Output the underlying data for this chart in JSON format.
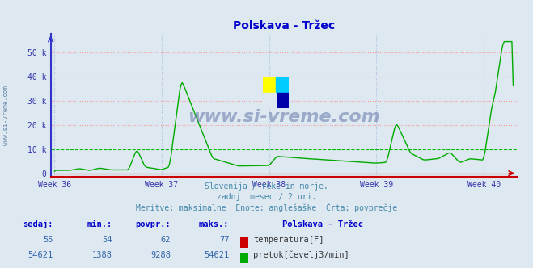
{
  "title": "Polskava - Tržec",
  "title_color": "#0000cc",
  "bg_color": "#dde8f0",
  "plot_bg_color": "#dde8f0",
  "grid_h_color": "#ff9999",
  "grid_h_style": "dotted",
  "grid_v_color": "#aabbdd",
  "grid_v_style": "dotted",
  "special_h_color": "#00bb00",
  "special_h_y": 10000,
  "special_h_style": "dashed",
  "left_axis_color": "#3333cc",
  "bottom_axis_color": "#cc0000",
  "x_label_color": "#3333aa",
  "y_label_color": "#3333aa",
  "week_labels": [
    "Week 36",
    "Week 37",
    "Week 38",
    "Week 39",
    "Week 40"
  ],
  "week_positions": [
    0,
    84,
    168,
    252,
    336
  ],
  "y_ticks": [
    0,
    10000,
    20000,
    30000,
    40000,
    50000
  ],
  "y_tick_labels": [
    "0",
    "10 k",
    "20 k",
    "30 k",
    "40 k",
    "50 k"
  ],
  "ylim": [
    -1500,
    58000
  ],
  "xlim": [
    -3,
    362
  ],
  "subtitle_lines": [
    "Slovenija / reke in morje.",
    "zadnji mesec / 2 uri.",
    "Meritve: maksimalne  Enote: anglešaške  Črta: povprečje"
  ],
  "subtitle_color": "#4488aa",
  "table_headers": [
    "sedaj:",
    "min.:",
    "povpr.:",
    "maks.:"
  ],
  "table_header_color": "#0000cc",
  "table_row1": [
    "55",
    "54",
    "62",
    "77"
  ],
  "table_row2": [
    "54621",
    "1388",
    "9288",
    "54621"
  ],
  "table_value_color": "#3366aa",
  "legend_label": "Polskava - Tržec",
  "legend_label_color": "#0000cc",
  "temp_label": "temperatura[F]",
  "flow_label": "pretok[čevelj3/min]",
  "temp_color": "#cc0000",
  "flow_color": "#00aa00",
  "watermark": "www.si-vreme.com",
  "watermark_color": "#6677aa",
  "side_watermark_color": "#6688aa",
  "dpi": 100,
  "figsize": [
    6.59,
    3.32
  ]
}
